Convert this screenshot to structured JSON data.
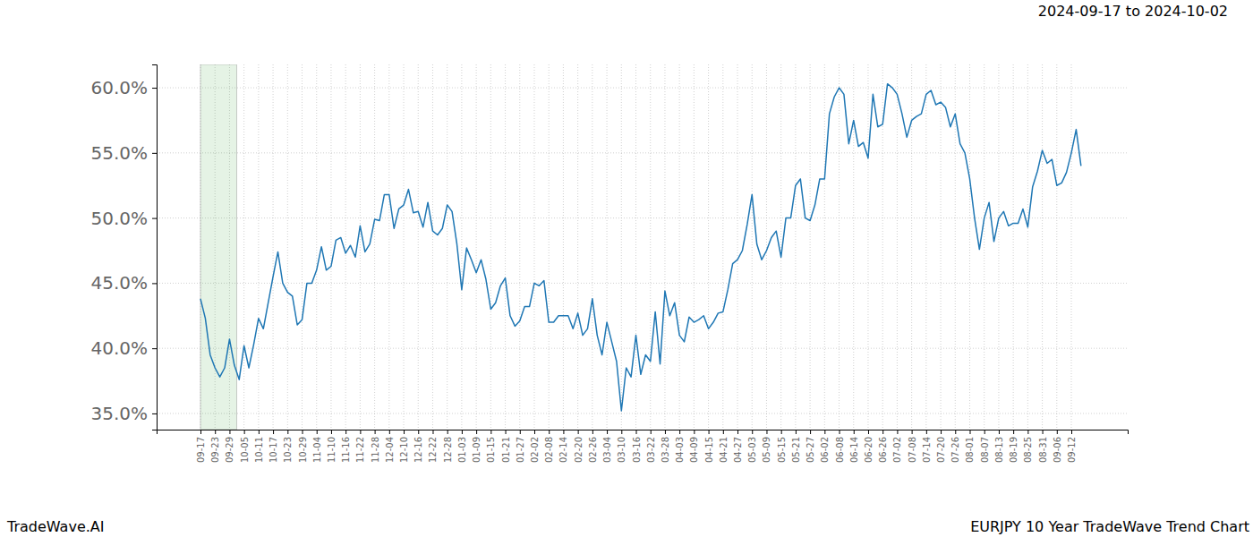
{
  "chart_data": {
    "type": "line",
    "title": "2024-09-17 to 2024-10-02",
    "annotations": [
      "TradeWave.AI",
      "EURJPY 10 Year TradeWave Trend Chart"
    ],
    "color": "#1f77b4",
    "grid": true,
    "shaded_span": {
      "start": 0,
      "end": 7.5
    },
    "ylim": [
      33.76,
      61.79
    ],
    "yticks": [
      {
        "value": 35,
        "label": "35.0%"
      },
      {
        "value": 40,
        "label": "40.0%"
      },
      {
        "value": 45,
        "label": "45.0%"
      },
      {
        "value": 50,
        "label": "50.0%"
      },
      {
        "value": 55,
        "label": "55.0%"
      },
      {
        "value": 60,
        "label": "60.0%"
      }
    ],
    "categories": [
      "09-17",
      null,
      null,
      "09-23",
      null,
      null,
      "09-29",
      null,
      null,
      "10-05",
      null,
      null,
      "10-11",
      null,
      null,
      "10-17",
      null,
      null,
      "10-23",
      null,
      null,
      "10-29",
      null,
      null,
      "11-04",
      null,
      null,
      "11-10",
      null,
      null,
      "11-16",
      null,
      null,
      "11-22",
      null,
      null,
      "11-28",
      null,
      null,
      "12-04",
      null,
      null,
      "12-10",
      null,
      null,
      "12-16",
      null,
      null,
      "12-22",
      null,
      null,
      "12-28",
      null,
      null,
      "01-03",
      null,
      null,
      "01-09",
      null,
      null,
      "01-15",
      null,
      null,
      "01-21",
      null,
      null,
      "01-27",
      null,
      null,
      "02-02",
      null,
      null,
      "02-08",
      null,
      null,
      "02-14",
      null,
      null,
      "02-20",
      null,
      null,
      "02-26",
      null,
      null,
      "03-04",
      null,
      null,
      "03-10",
      null,
      null,
      "03-16",
      null,
      null,
      "03-22",
      null,
      null,
      "03-28",
      null,
      null,
      "04-03",
      null,
      null,
      "04-09",
      null,
      null,
      "04-15",
      null,
      null,
      "04-21",
      null,
      null,
      "04-27",
      null,
      null,
      "05-03",
      null,
      null,
      "05-09",
      null,
      null,
      "05-15",
      null,
      null,
      "05-21",
      null,
      null,
      "05-27",
      null,
      null,
      "06-02",
      null,
      null,
      "06-08",
      null,
      null,
      "06-14",
      null,
      null,
      "06-20",
      null,
      null,
      "06-26",
      null,
      null,
      "07-02",
      null,
      null,
      "07-08",
      null,
      null,
      "07-14",
      null,
      null,
      "07-20",
      null,
      null,
      "07-26",
      null,
      null,
      "08-01",
      null,
      null,
      "08-07",
      null,
      null,
      "08-13",
      null,
      null,
      "08-19",
      null,
      null,
      "08-25",
      null,
      null,
      "08-31",
      null,
      null,
      "09-06",
      null,
      null,
      "09-12",
      null,
      null
    ],
    "values": [
      43.8,
      42.3,
      39.5,
      38.5,
      37.8,
      38.5,
      40.7,
      38.7,
      37.6,
      40.2,
      38.5,
      40.3,
      42.3,
      41.5,
      43.5,
      45.5,
      47.4,
      45.0,
      44.3,
      44.0,
      41.8,
      42.2,
      45.0,
      45.0,
      46.0,
      47.8,
      46.0,
      46.3,
      48.3,
      48.5,
      47.3,
      47.9,
      47.0,
      49.4,
      47.4,
      48.0,
      49.9,
      49.8,
      51.8,
      51.8,
      49.2,
      50.7,
      51.0,
      52.2,
      50.4,
      50.5,
      49.3,
      51.2,
      49.0,
      48.7,
      49.2,
      51.0,
      50.5,
      48.0,
      44.5,
      47.7,
      46.8,
      45.8,
      46.8,
      45.3,
      43.0,
      43.5,
      44.8,
      45.4,
      42.5,
      41.7,
      42.1,
      43.2,
      43.2,
      45.0,
      44.8,
      45.2,
      42.0,
      42.0,
      42.5,
      42.5,
      42.5,
      41.5,
      42.7,
      41.0,
      41.5,
      43.8,
      41.0,
      39.5,
      42.0,
      40.5,
      39.0,
      35.2,
      38.5,
      37.8,
      41.0,
      38.0,
      39.5,
      39.0,
      42.8,
      38.8,
      44.4,
      42.5,
      43.5,
      41.0,
      40.5,
      42.4,
      42.0,
      42.2,
      42.5,
      41.5,
      42.0,
      42.7,
      42.8,
      44.5,
      46.5,
      46.8,
      47.5,
      49.5,
      51.8,
      48.0,
      46.8,
      47.5,
      48.5,
      49.0,
      47.0,
      50.0,
      50.0,
      52.5,
      53.0,
      50.0,
      49.8,
      51.0,
      53.0,
      53.0,
      58.0,
      59.3,
      60.0,
      59.5,
      55.7,
      57.5,
      55.5,
      55.8,
      54.6,
      59.5,
      57.0,
      57.2,
      60.3,
      60.0,
      59.5,
      58.0,
      56.2,
      57.5,
      57.8,
      58.0,
      59.5,
      59.8,
      58.7,
      58.9,
      58.5,
      57.0,
      58.0,
      55.7,
      55.0,
      53.0,
      50.0,
      47.6,
      50.0,
      51.2,
      48.2,
      50.0,
      50.5,
      49.4,
      49.6,
      49.6,
      50.7,
      49.3,
      52.4,
      53.6,
      55.2,
      54.2,
      54.5,
      52.5,
      52.7,
      53.5,
      55.0,
      56.8,
      54.0
    ]
  }
}
